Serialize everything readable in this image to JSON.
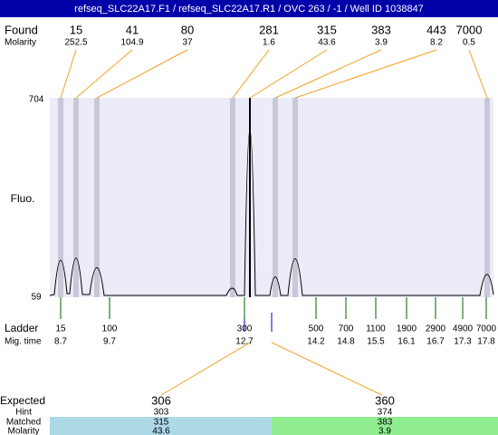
{
  "header": {
    "title": "refseq_SLC22A17.F1 / refseq_SLC22A17.R1 / OVC 263 / -1 / Well ID 1038847"
  },
  "found": {
    "label": "Found",
    "molarity_label": "Molarity",
    "sizes": [
      "15",
      "41",
      "80",
      "281",
      "315",
      "383",
      "443",
      "7000"
    ],
    "molarity": [
      "252.5",
      "104.9",
      "37",
      "1.6",
      "43.6",
      "3.9",
      "8.2",
      "0.5"
    ]
  },
  "axis": {
    "label": "Fluo.",
    "top": "704",
    "bottom": "59"
  },
  "ladder": {
    "label": "Ladder",
    "time_label": "Mig. time",
    "sizes": [
      "15",
      "100",
      "300",
      "500",
      "700",
      "1100",
      "1900",
      "2900",
      "4900",
      "7000"
    ],
    "times": [
      "8.7",
      "9.7",
      "12.7",
      "14.2",
      "14.8",
      "15.5",
      "16.1",
      "16.7",
      "17.3",
      "17.8"
    ]
  },
  "expected": {
    "label": "Expected",
    "hint_label": "Hint",
    "matched_label": "Matched",
    "molarity_label": "Molarity",
    "sizes": [
      "306",
      "360"
    ],
    "hints": [
      "303",
      "374"
    ],
    "matched": [
      "315",
      "383"
    ],
    "molarity": [
      "43.6",
      "3.9"
    ]
  }
}
